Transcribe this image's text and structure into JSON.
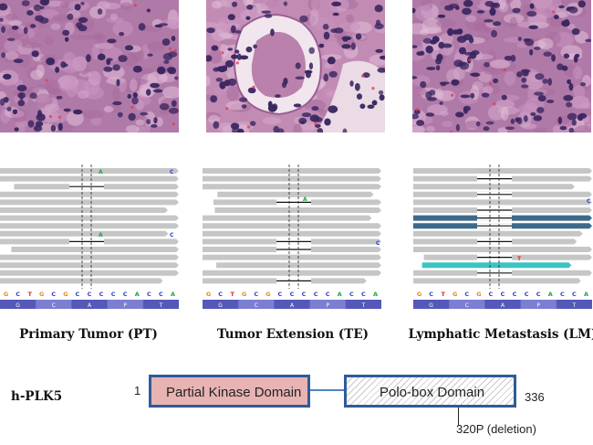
{
  "panels": [
    {
      "caption": "Primary Tumor (PT)",
      "reference": [
        "G",
        "C",
        "T",
        "G",
        "C",
        "G",
        "C",
        "C",
        "C",
        "C",
        "C",
        "A",
        "C",
        "C",
        "A"
      ],
      "codons": [
        "G",
        "C",
        "A",
        "P",
        "T"
      ],
      "mismatches": [
        "A",
        "C",
        "A",
        "C"
      ]
    },
    {
      "caption": "Tumor Extension (TE)",
      "reference": [
        "G",
        "C",
        "T",
        "G",
        "C",
        "G",
        "C",
        "C",
        "C",
        "C",
        "C",
        "A",
        "C",
        "C",
        "A"
      ],
      "codons": [
        "G",
        "C",
        "A",
        "P",
        "T"
      ],
      "mismatches": [
        "A",
        "C"
      ]
    },
    {
      "caption": "Lymphatic Metastasis (LM)",
      "reference": [
        "G",
        "C",
        "T",
        "G",
        "C",
        "G",
        "C",
        "C",
        "C",
        "C",
        "C",
        "A",
        "C",
        "C",
        "A"
      ],
      "codons": [
        "G",
        "C",
        "A",
        "P",
        "T"
      ],
      "mismatches": [
        "C",
        "T"
      ]
    }
  ],
  "protein": {
    "name": "h-PLK5",
    "start": "1",
    "end": "336",
    "domains": [
      "Partial Kinase Domain",
      "Polo-box Domain"
    ],
    "mutation": "320P (deletion)"
  },
  "colors": {
    "kinase_fill": "#e8b3b3",
    "domain_border": "#2f5b9a",
    "read_gray": "#c6c6c6",
    "read_dark_blue": "#3d6a8a",
    "read_teal": "#3bc4c4",
    "tissue_base": "#b07aa8",
    "nucleus": "#3b2660"
  },
  "icons": [
    "he-tissue-image",
    "igv-read-pileup"
  ]
}
